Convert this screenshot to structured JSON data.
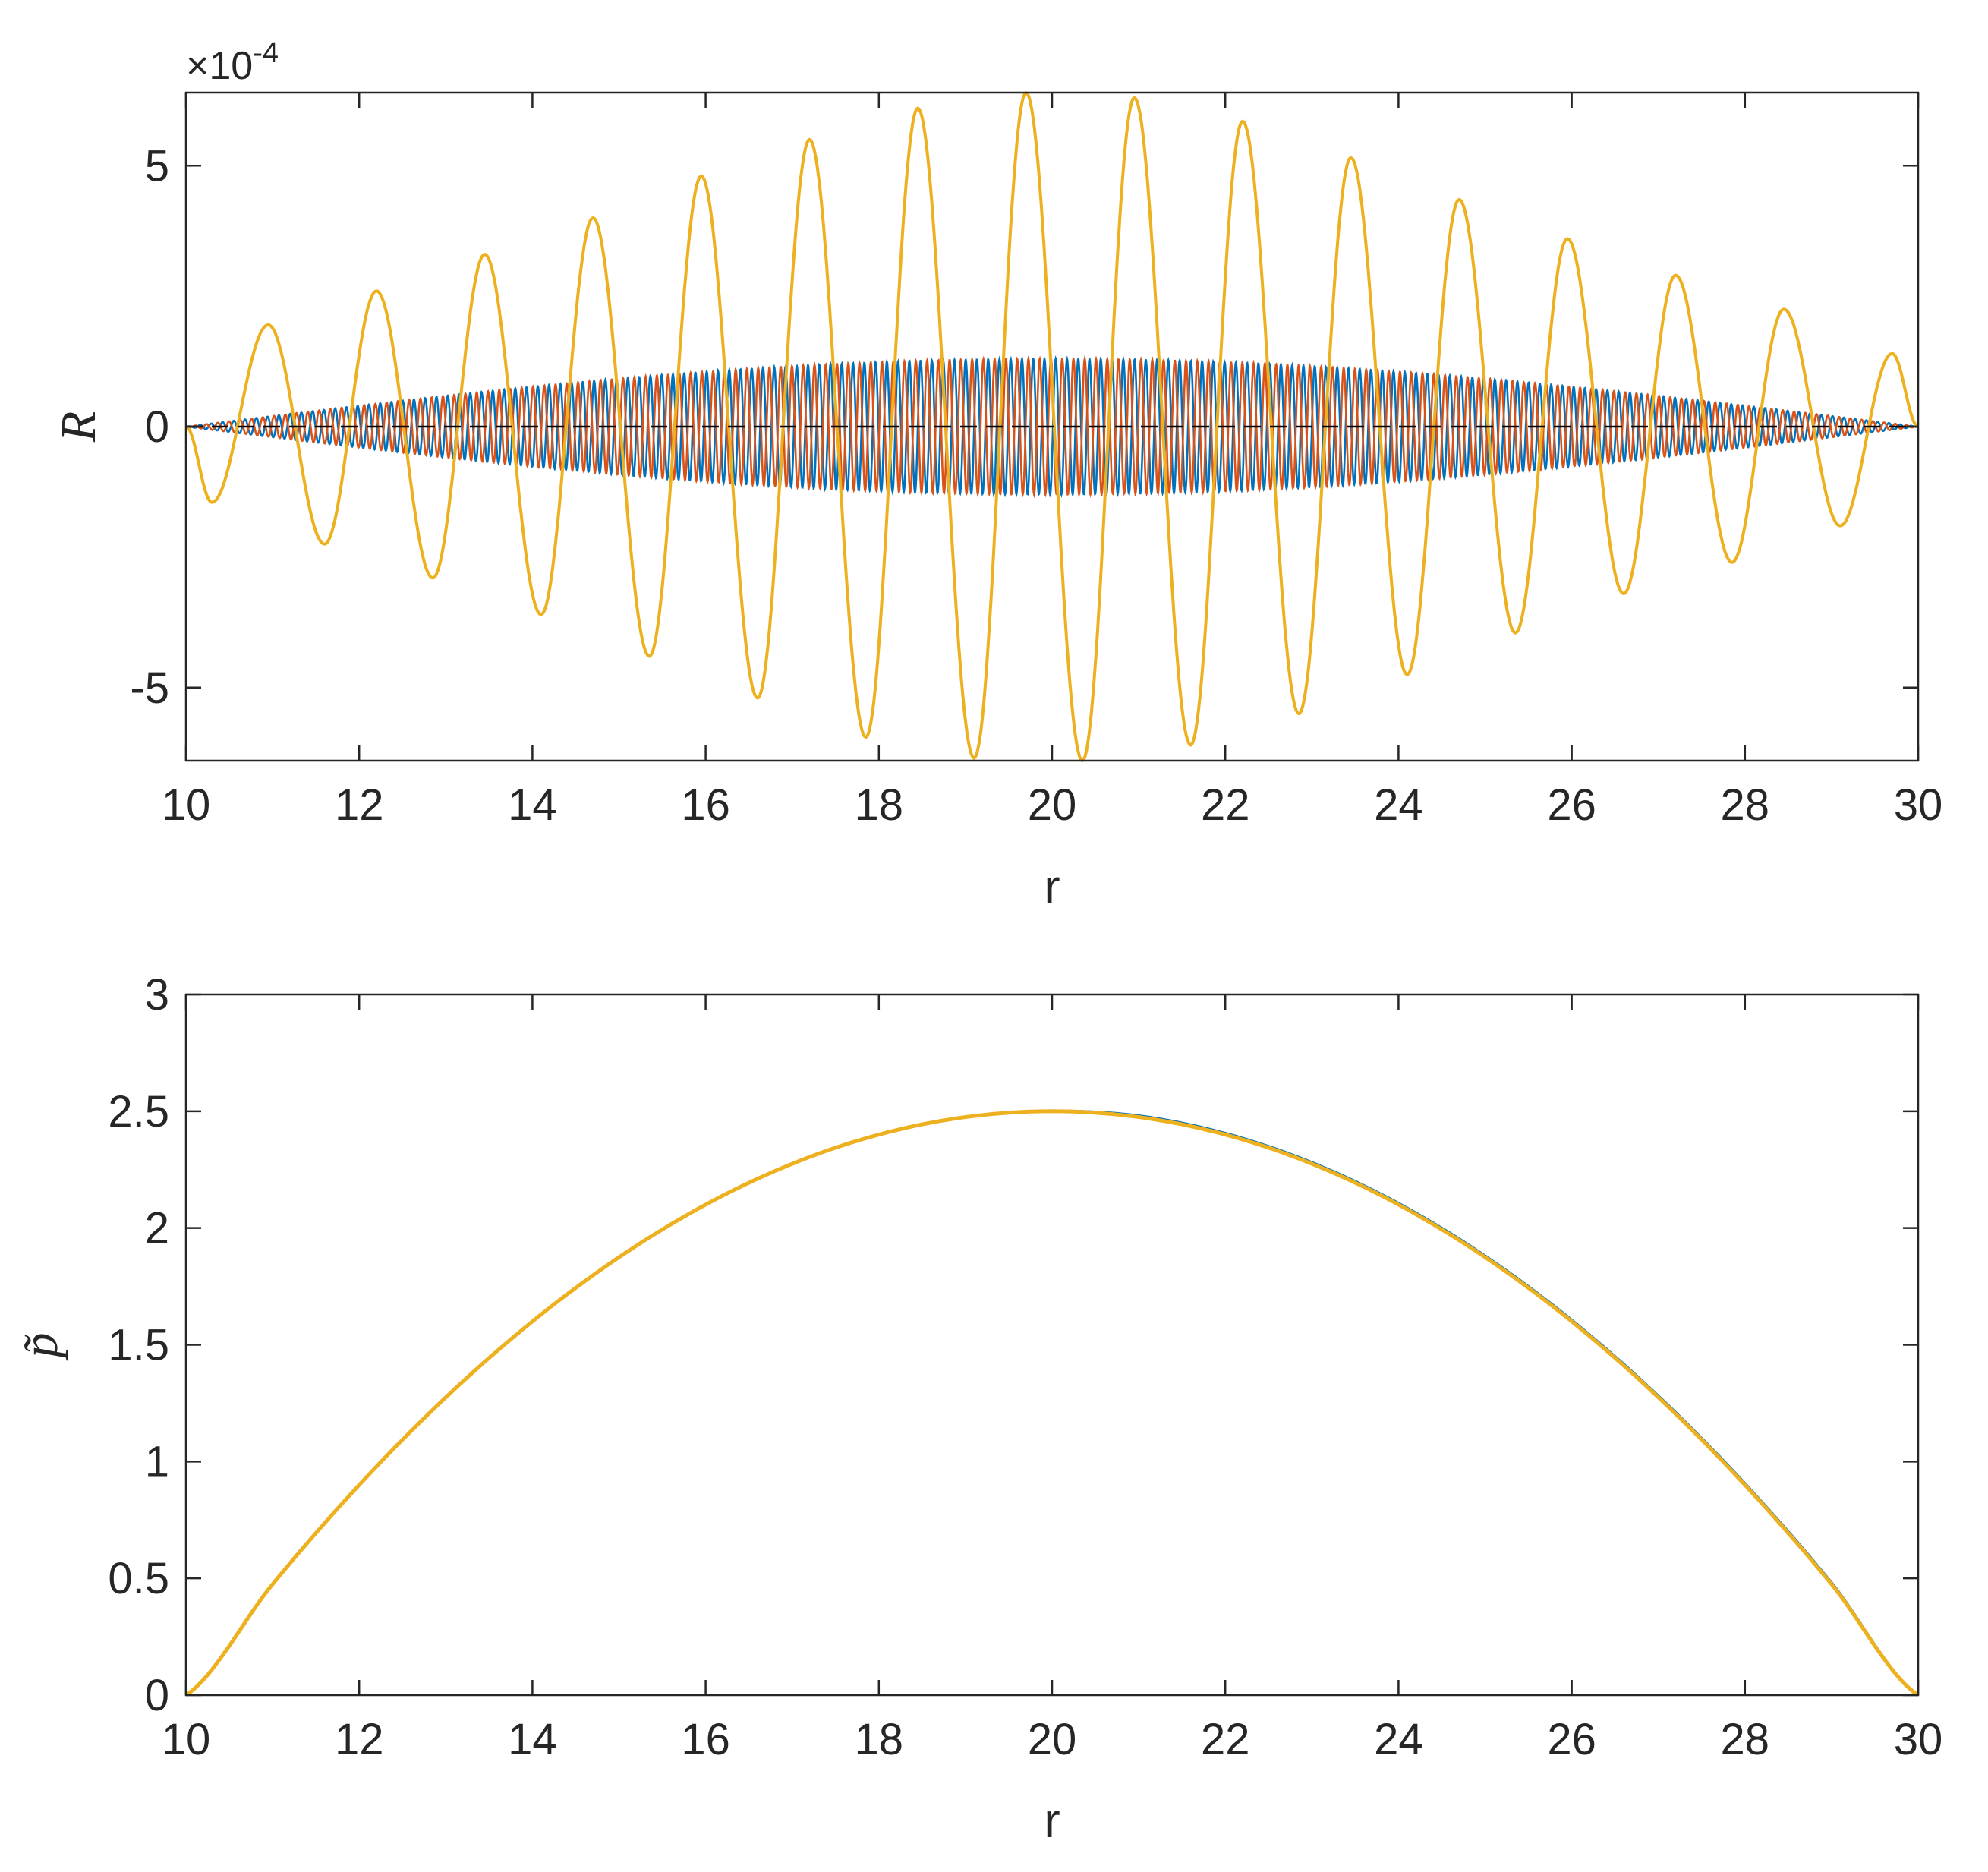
{
  "chart_data": [
    {
      "type": "line",
      "xlabel": "r",
      "ylabel": "R",
      "exponent_prefix": "×10",
      "exponent_power": "-4",
      "xlim": [
        10,
        30
      ],
      "ylim": [
        -6.4,
        6.4
      ],
      "y_scale": "×10^-4",
      "xticks": [
        "10",
        "12",
        "14",
        "16",
        "18",
        "20",
        "22",
        "24",
        "26",
        "28",
        "30"
      ],
      "yticks": [
        "-5",
        "0",
        "5"
      ],
      "ytick_values": [
        -5,
        0,
        5
      ],
      "grid": false,
      "legend": "none",
      "series": [
        {
          "color": "#0072BD",
          "style": "solid",
          "envelope_peak": 1.3,
          "period": 0.13
        },
        {
          "color": "#D95319",
          "style": "solid",
          "envelope_peak": 1.3,
          "period": 0.13
        },
        {
          "color": "#EDB120",
          "style": "solid",
          "peaks": [
            {
              "x": 10.3,
              "y": -1.45
            },
            {
              "x": 10.95,
              "y": 1.95
            },
            {
              "x": 11.6,
              "y": -2.25
            },
            {
              "x": 12.2,
              "y": 2.6
            },
            {
              "x": 12.85,
              "y": -2.9
            },
            {
              "x": 13.45,
              "y": 3.3
            },
            {
              "x": 14.1,
              "y": -3.6
            },
            {
              "x": 14.7,
              "y": 4.0
            },
            {
              "x": 15.35,
              "y": -4.4
            },
            {
              "x": 15.95,
              "y": 4.8
            },
            {
              "x": 16.6,
              "y": -5.2
            },
            {
              "x": 17.2,
              "y": 5.5
            },
            {
              "x": 17.85,
              "y": -5.95
            },
            {
              "x": 18.45,
              "y": 6.1
            },
            {
              "x": 19.1,
              "y": -6.35
            },
            {
              "x": 19.7,
              "y": 6.4
            },
            {
              "x": 20.35,
              "y": -6.4
            },
            {
              "x": 20.95,
              "y": 6.3
            },
            {
              "x": 21.6,
              "y": -6.1
            },
            {
              "x": 22.2,
              "y": 5.85
            },
            {
              "x": 22.85,
              "y": -5.5
            },
            {
              "x": 23.45,
              "y": 5.15
            },
            {
              "x": 24.1,
              "y": -4.75
            },
            {
              "x": 24.7,
              "y": 4.35
            },
            {
              "x": 25.35,
              "y": -3.95
            },
            {
              "x": 25.95,
              "y": 3.6
            },
            {
              "x": 26.6,
              "y": -3.2
            },
            {
              "x": 27.2,
              "y": 2.9
            },
            {
              "x": 27.85,
              "y": -2.6
            },
            {
              "x": 28.45,
              "y": 2.25
            },
            {
              "x": 29.1,
              "y": -1.9
            },
            {
              "x": 29.7,
              "y": 1.4
            }
          ]
        },
        {
          "color": "#000000",
          "style": "dashed",
          "y": 0
        }
      ]
    },
    {
      "type": "line",
      "xlabel": "r",
      "ylabel": "p̃",
      "xlim": [
        10,
        30
      ],
      "ylim": [
        0,
        3
      ],
      "xticks": [
        "10",
        "12",
        "14",
        "16",
        "18",
        "20",
        "22",
        "24",
        "26",
        "28",
        "30"
      ],
      "yticks": [
        "0",
        "0.5",
        "1",
        "1.5",
        "2",
        "2.5",
        "3"
      ],
      "ytick_values": [
        0,
        0.5,
        1,
        1.5,
        2,
        2.5,
        3
      ],
      "grid": false,
      "legend": "none",
      "series": [
        {
          "color": "#0072BD",
          "points": [
            [
              10,
              0
            ],
            [
              11,
              0.475
            ],
            [
              12,
              0.9
            ],
            [
              13,
              1.275
            ],
            [
              14,
              1.6
            ],
            [
              15,
              1.875
            ],
            [
              16,
              2.1
            ],
            [
              17,
              2.275
            ],
            [
              18,
              2.4
            ],
            [
              19,
              2.475
            ],
            [
              20,
              2.5
            ],
            [
              21,
              2.48
            ],
            [
              22,
              2.405
            ],
            [
              23,
              2.28
            ],
            [
              24,
              2.105
            ],
            [
              25,
              1.88
            ],
            [
              26,
              1.605
            ],
            [
              27,
              1.28
            ],
            [
              28,
              0.905
            ],
            [
              29,
              0.48
            ],
            [
              30,
              0
            ]
          ]
        },
        {
          "color": "#D95319",
          "points": [
            [
              10,
              0
            ],
            [
              11,
              0.475
            ],
            [
              12,
              0.9
            ],
            [
              13,
              1.275
            ],
            [
              14,
              1.6
            ],
            [
              15,
              1.875
            ],
            [
              16,
              2.1
            ],
            [
              17,
              2.275
            ],
            [
              18,
              2.4
            ],
            [
              19,
              2.475
            ],
            [
              20,
              2.5
            ],
            [
              21,
              2.475
            ],
            [
              22,
              2.4
            ],
            [
              23,
              2.275
            ],
            [
              24,
              2.1
            ],
            [
              25,
              1.875
            ],
            [
              26,
              1.6
            ],
            [
              27,
              1.275
            ],
            [
              28,
              0.9
            ],
            [
              29,
              0.475
            ],
            [
              30,
              0
            ]
          ]
        },
        {
          "color": "#EDB120",
          "points": [
            [
              10,
              0
            ],
            [
              11,
              0.475
            ],
            [
              12,
              0.9
            ],
            [
              13,
              1.275
            ],
            [
              14,
              1.6
            ],
            [
              15,
              1.875
            ],
            [
              16,
              2.1
            ],
            [
              17,
              2.275
            ],
            [
              18,
              2.4
            ],
            [
              19,
              2.475
            ],
            [
              20,
              2.5
            ],
            [
              21,
              2.475
            ],
            [
              22,
              2.4
            ],
            [
              23,
              2.275
            ],
            [
              24,
              2.1
            ],
            [
              25,
              1.875
            ],
            [
              26,
              1.6
            ],
            [
              27,
              1.275
            ],
            [
              28,
              0.9
            ],
            [
              29,
              0.475
            ],
            [
              30,
              0
            ]
          ]
        }
      ]
    }
  ]
}
